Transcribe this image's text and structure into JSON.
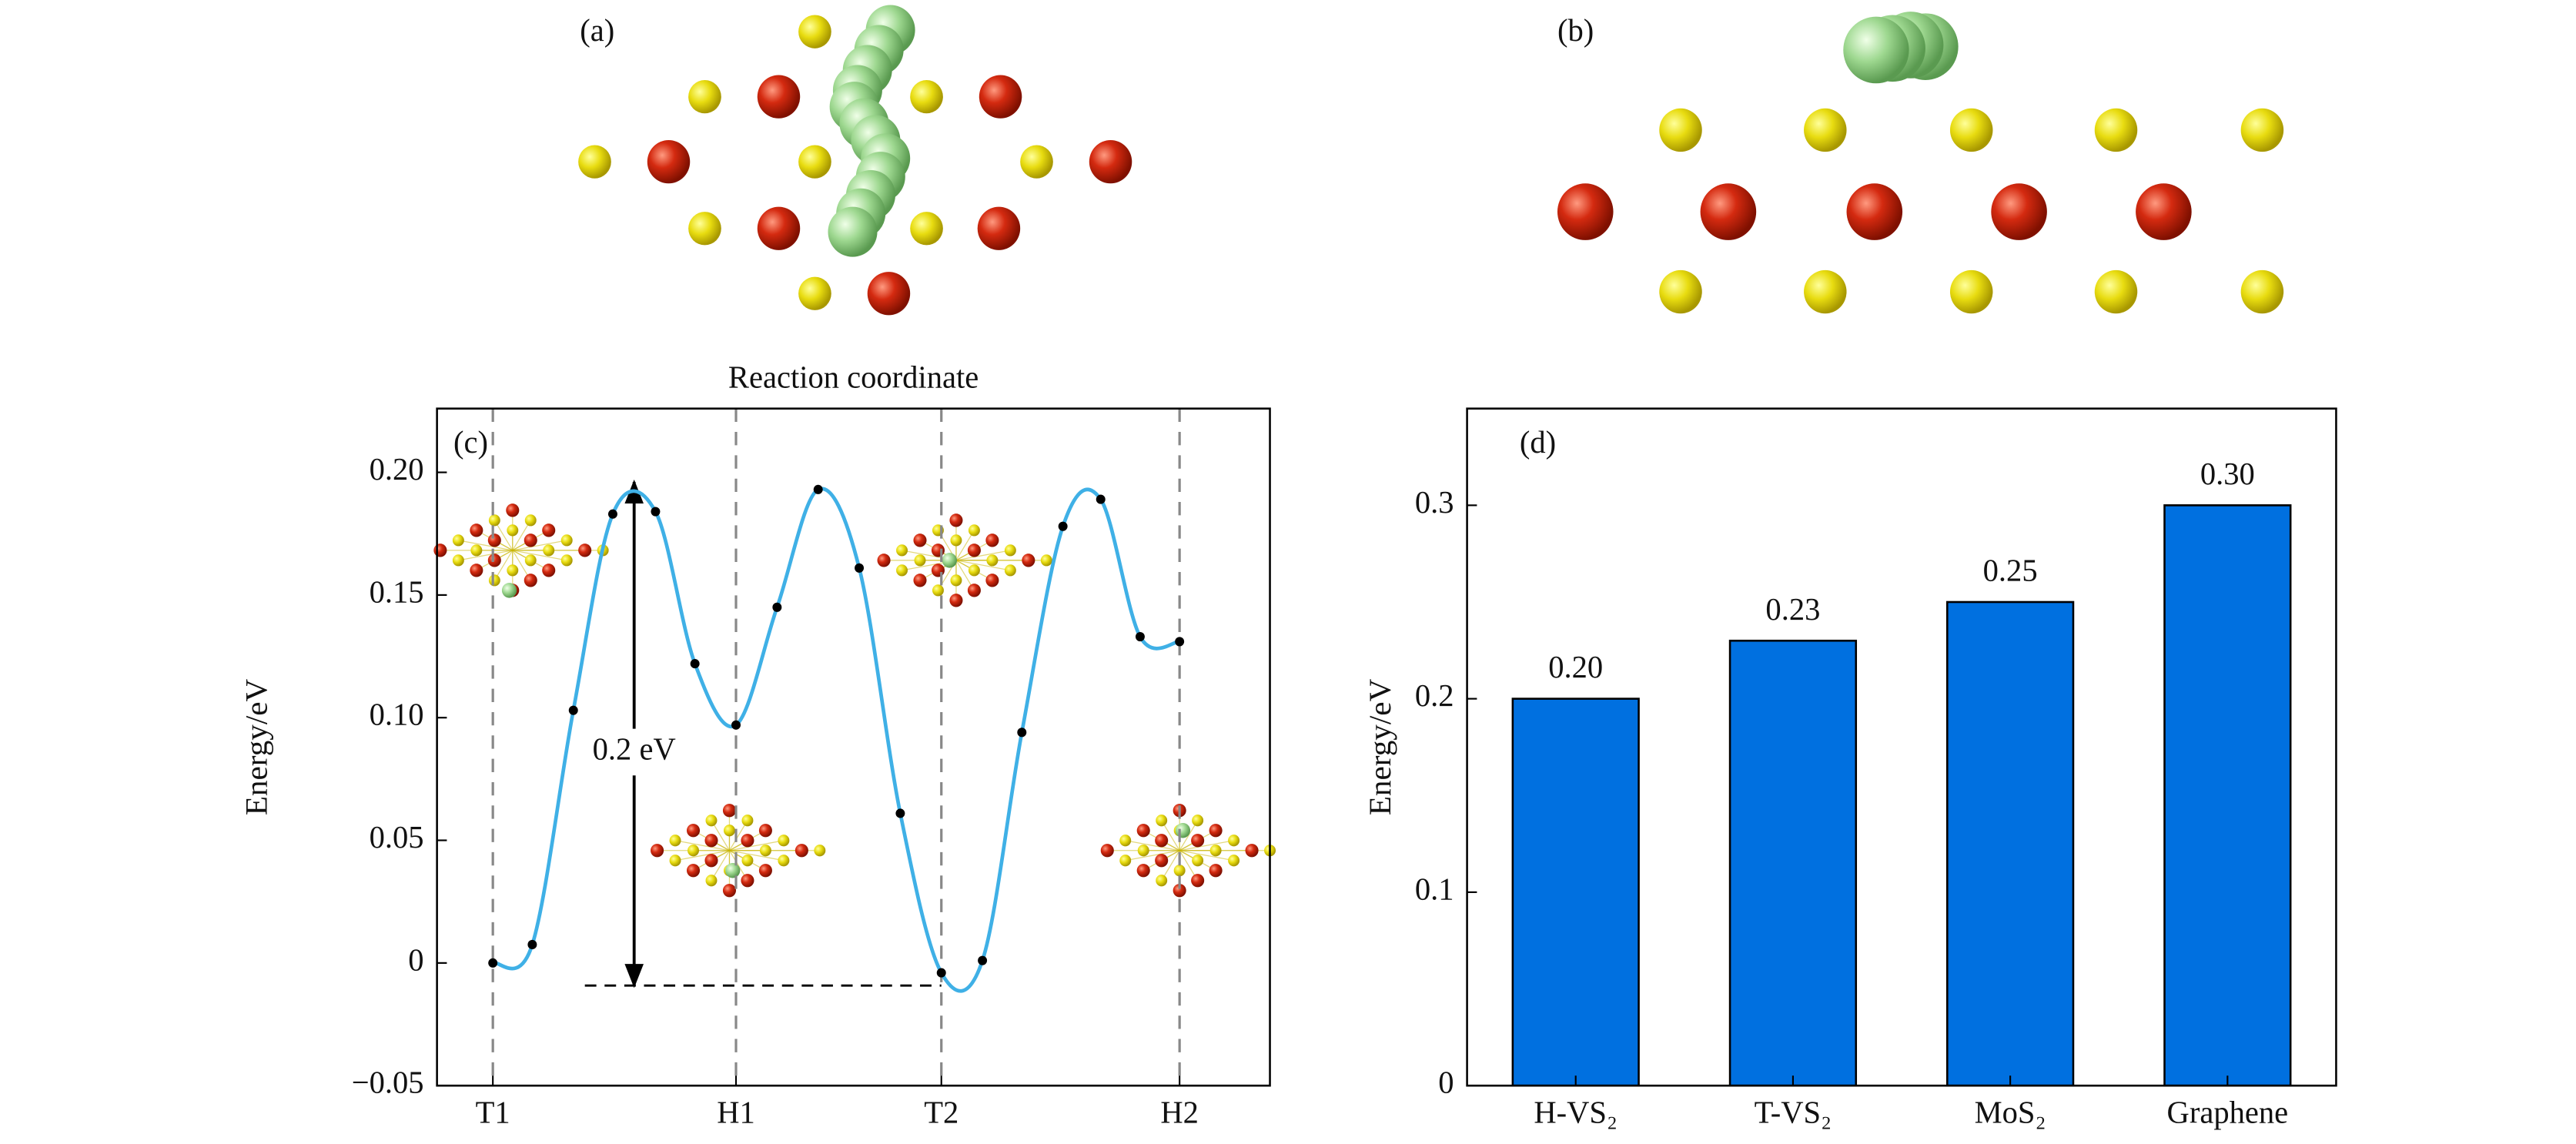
{
  "images": [
    {
      "label": "(a)"
    },
    {
      "label": "(b)"
    }
  ],
  "chart_data": [
    {
      "type": "line",
      "panel": "(c)",
      "xlabel": "Reaction coordinate",
      "ylabel": "Energy/eV",
      "x": [
        0,
        0.24,
        0.49,
        0.73,
        0.99,
        1.23,
        1.48,
        1.73,
        1.98,
        2.23,
        2.48,
        2.73,
        2.98,
        3.22,
        3.47,
        3.7,
        3.94,
        4.18
      ],
      "values": [
        0,
        0.0075,
        0.103,
        0.183,
        0.184,
        0.122,
        0.097,
        0.145,
        0.193,
        0.161,
        0.061,
        -0.004,
        0.001,
        0.094,
        0.178,
        0.189,
        0.133,
        0.131
      ],
      "color": "#3fb0e6",
      "marker_color": "#000000",
      "xlim": [
        -0.34,
        4.73
      ],
      "xticks": [
        {
          "value": 0,
          "label": "T1"
        },
        {
          "value": 1.48,
          "label": "H1"
        },
        {
          "value": 2.73,
          "label": "T2"
        },
        {
          "value": 4.18,
          "label": "H2"
        }
      ],
      "ylim": [
        -0.05,
        0.226
      ],
      "yticks": [
        {
          "value": -0.05,
          "label": "−0.05"
        },
        0,
        0.05,
        {
          "value": 0.1,
          "label": "0.10"
        },
        0.15,
        {
          "value": 0.2,
          "label": "0.20"
        }
      ],
      "vertical_lines": true,
      "annotation": "0.2 eV"
    },
    {
      "type": "bar",
      "panel": "(d)",
      "ylabel": "Energy/eV",
      "categories": [
        "H-VS₂",
        "T-VS₂",
        "MoS₂",
        "Graphene"
      ],
      "values": [
        0.2,
        0.23,
        0.25,
        0.3
      ],
      "value_labels": [
        "0.20",
        "0.23",
        "0.25",
        "0.30"
      ],
      "color": "#0070e0",
      "ylim": [
        0,
        0.35
      ],
      "yticks": [
        0,
        0.1,
        0.2,
        0.3
      ]
    }
  ]
}
